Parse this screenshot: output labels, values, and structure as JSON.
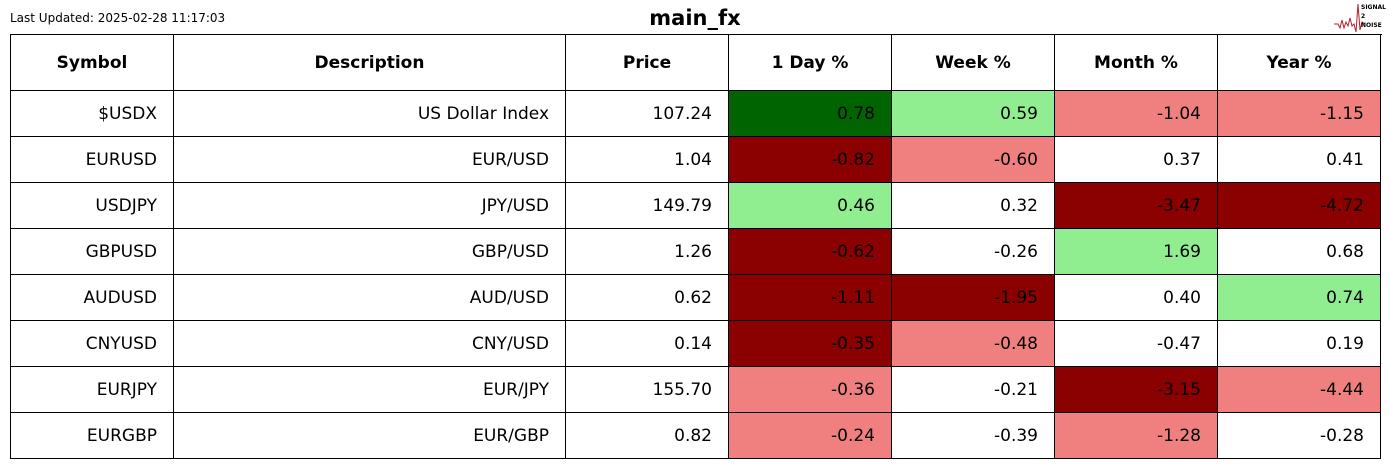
{
  "header": {
    "last_updated": "Last Updated: 2025-02-28 11:17:03",
    "title": "main_fx",
    "logo_text": "SIGNAL 2 NOISE"
  },
  "colors": {
    "strong_up": "#006400",
    "up": "#90ee90",
    "down": "#f08080",
    "strong_down": "#8b0000",
    "neutral": "#ffffff"
  },
  "columns": [
    "Symbol",
    "Description",
    "Price",
    "1 Day %",
    "Week %",
    "Month %",
    "Year %"
  ],
  "rows": [
    {
      "symbol": "$USDX",
      "description": "US Dollar Index",
      "price": "107.24",
      "changes": [
        {
          "v": "0.78",
          "c": "strong_up"
        },
        {
          "v": "0.59",
          "c": "up"
        },
        {
          "v": "-1.04",
          "c": "down"
        },
        {
          "v": "-1.15",
          "c": "down"
        }
      ]
    },
    {
      "symbol": "EURUSD",
      "description": "EUR/USD",
      "price": "1.04",
      "changes": [
        {
          "v": "-0.82",
          "c": "strong_down"
        },
        {
          "v": "-0.60",
          "c": "down"
        },
        {
          "v": "0.37",
          "c": "neutral"
        },
        {
          "v": "0.41",
          "c": "neutral"
        }
      ]
    },
    {
      "symbol": "USDJPY",
      "description": "JPY/USD",
      "price": "149.79",
      "changes": [
        {
          "v": "0.46",
          "c": "up"
        },
        {
          "v": "0.32",
          "c": "neutral"
        },
        {
          "v": "-3.47",
          "c": "strong_down"
        },
        {
          "v": "-4.72",
          "c": "strong_down"
        }
      ]
    },
    {
      "symbol": "GBPUSD",
      "description": "GBP/USD",
      "price": "1.26",
      "changes": [
        {
          "v": "-0.62",
          "c": "strong_down"
        },
        {
          "v": "-0.26",
          "c": "neutral"
        },
        {
          "v": "1.69",
          "c": "up"
        },
        {
          "v": "0.68",
          "c": "neutral"
        }
      ]
    },
    {
      "symbol": "AUDUSD",
      "description": "AUD/USD",
      "price": "0.62",
      "changes": [
        {
          "v": "-1.11",
          "c": "strong_down"
        },
        {
          "v": "-1.95",
          "c": "strong_down"
        },
        {
          "v": "0.40",
          "c": "neutral"
        },
        {
          "v": "0.74",
          "c": "up"
        }
      ]
    },
    {
      "symbol": "CNYUSD",
      "description": "CNY/USD",
      "price": "0.14",
      "changes": [
        {
          "v": "-0.35",
          "c": "strong_down"
        },
        {
          "v": "-0.48",
          "c": "down"
        },
        {
          "v": "-0.47",
          "c": "neutral"
        },
        {
          "v": "0.19",
          "c": "neutral"
        }
      ]
    },
    {
      "symbol": "EURJPY",
      "description": "EUR/JPY",
      "price": "155.70",
      "changes": [
        {
          "v": "-0.36",
          "c": "down"
        },
        {
          "v": "-0.21",
          "c": "neutral"
        },
        {
          "v": "-3.15",
          "c": "strong_down"
        },
        {
          "v": "-4.44",
          "c": "down"
        }
      ]
    },
    {
      "symbol": "EURGBP",
      "description": "EUR/GBP",
      "price": "0.82",
      "changes": [
        {
          "v": "-0.24",
          "c": "down"
        },
        {
          "v": "-0.39",
          "c": "neutral"
        },
        {
          "v": "-1.28",
          "c": "down"
        },
        {
          "v": "-0.28",
          "c": "neutral"
        }
      ]
    }
  ]
}
